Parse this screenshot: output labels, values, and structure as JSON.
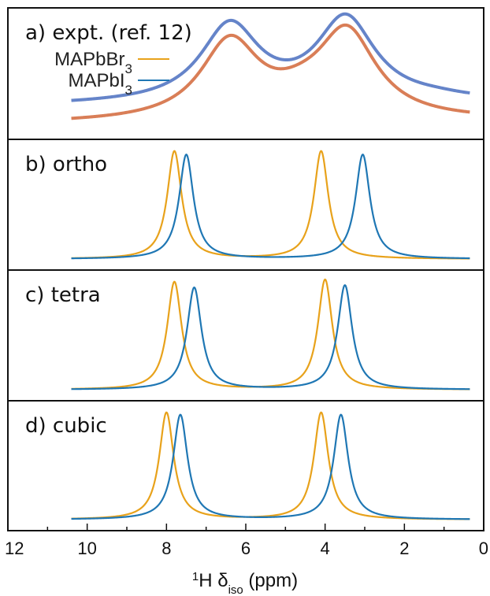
{
  "chart_data": {
    "type": "line",
    "xlabel_parts": {
      "sup": "1",
      "main": "H δ",
      "sub": "iso",
      "unit": " (ppm)"
    },
    "xlim": [
      12,
      0
    ],
    "x_ticks": [
      12,
      10,
      8,
      6,
      4,
      2,
      0
    ],
    "x_reversed": true,
    "grid": false,
    "legend": {
      "placement": "top-left",
      "entries": [
        {
          "prefix": "MAPbBr",
          "sub": "3",
          "color": "#e8a21b"
        },
        {
          "prefix": "MAPbI",
          "sub": "3",
          "color": "#1f77b4"
        }
      ]
    },
    "panels": [
      {
        "label": "a) expt. (ref. 12)",
        "series": [
          {
            "name": "MAPbI3",
            "color": "#4a6fc0",
            "width": 0.9,
            "baseline": 0.2,
            "tail_slope": 0.06,
            "peaks": [
              {
                "x": 6.4,
                "height": 0.67
              },
              {
                "x": 3.48,
                "height": 0.72
              },
              {
                "x": 1.2,
                "height": 0.02
              }
            ]
          },
          {
            "name": "MAPbBr3",
            "color": "#d2673a",
            "width": 0.9,
            "baseline": 0.04,
            "tail_slope": 0.05,
            "peaks": [
              {
                "x": 6.4,
                "height": 0.68
              },
              {
                "x": 4.6,
                "height": 0.1
              },
              {
                "x": 3.45,
                "height": 0.75
              }
            ]
          }
        ]
      },
      {
        "label": "b) ortho",
        "series": [
          {
            "name": "MAPbBr3",
            "color": "#e8a21b",
            "width": 0.22,
            "baseline": 0,
            "tail_slope": 0,
            "peaks": [
              {
                "x": 7.8,
                "height": 0.95
              },
              {
                "x": 4.1,
                "height": 0.95
              }
            ]
          },
          {
            "name": "MAPbI3",
            "color": "#1f77b4",
            "width": 0.22,
            "baseline": 0,
            "tail_slope": 0,
            "peaks": [
              {
                "x": 7.5,
                "height": 0.92
              },
              {
                "x": 3.05,
                "height": 0.92
              }
            ]
          }
        ]
      },
      {
        "label": "c) tetra",
        "series": [
          {
            "name": "MAPbBr3",
            "color": "#e8a21b",
            "width": 0.22,
            "baseline": 0,
            "tail_slope": 0,
            "peaks": [
              {
                "x": 7.8,
                "height": 0.95
              },
              {
                "x": 4.0,
                "height": 0.97
              }
            ]
          },
          {
            "name": "MAPbI3",
            "color": "#1f77b4",
            "width": 0.22,
            "baseline": 0,
            "tail_slope": 0,
            "peaks": [
              {
                "x": 7.3,
                "height": 0.9
              },
              {
                "x": 3.5,
                "height": 0.92
              }
            ]
          }
        ]
      },
      {
        "label": "d) cubic",
        "series": [
          {
            "name": "MAPbBr3",
            "color": "#e8a21b",
            "width": 0.22,
            "baseline": 0,
            "tail_slope": 0,
            "peaks": [
              {
                "x": 8.0,
                "height": 0.95
              },
              {
                "x": 4.1,
                "height": 0.95
              }
            ]
          },
          {
            "name": "MAPbI3",
            "color": "#1f77b4",
            "width": 0.22,
            "baseline": 0,
            "tail_slope": 0,
            "peaks": [
              {
                "x": 7.65,
                "height": 0.93
              },
              {
                "x": 3.6,
                "height": 0.93
              }
            ]
          }
        ]
      }
    ]
  }
}
